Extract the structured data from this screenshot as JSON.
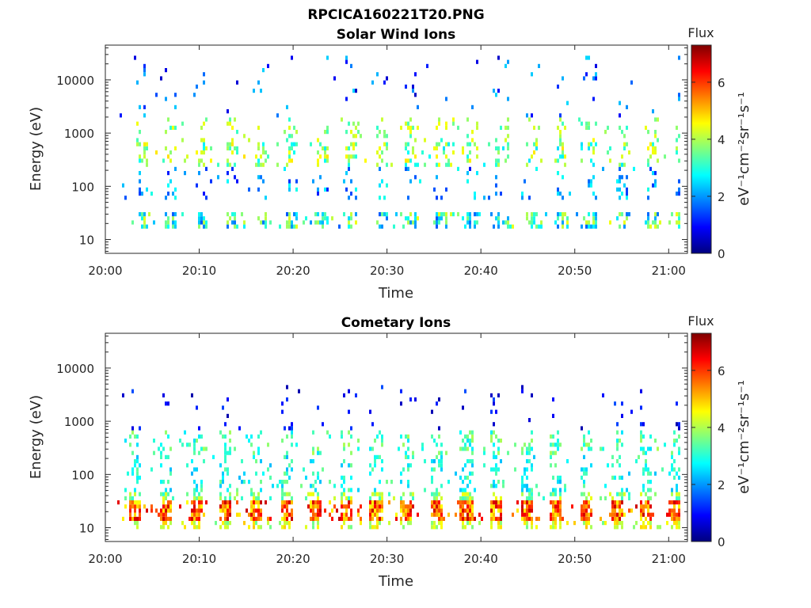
{
  "figure_title": "RPCICA160221T20.PNG",
  "colormap": [
    "#00007f",
    "#0000ff",
    "#007fff",
    "#00ffff",
    "#7fff7f",
    "#ffff00",
    "#ff7f00",
    "#ff0000",
    "#7f0000"
  ],
  "chart_data": [
    {
      "type": "heatmap",
      "title": "Solar Wind Ions",
      "xlabel": "Time",
      "ylabel": "Energy (eV)",
      "x_ticks": [
        "20:00",
        "20:10",
        "20:20",
        "20:30",
        "20:40",
        "20:50",
        "21:00"
      ],
      "xlim": [
        "20:00",
        "21:02"
      ],
      "y_scale": "log",
      "y_ticks": [
        "10",
        "100",
        "1000",
        "10000"
      ],
      "ylim": [
        5.5,
        45000
      ],
      "colorbar": {
        "title": "Flux",
        "label": "eV⁻¹cm⁻²sr⁻¹s⁻¹",
        "ticks": [
          "0",
          "2",
          "4",
          "6"
        ],
        "range": [
          0,
          7.3
        ]
      },
      "sweep_interval_min": 3.2,
      "sweep_start_min": 3.2,
      "bands": [
        {
          "energy_range": [
            15,
            35
          ],
          "flux_range": [
            1.5,
            4.5
          ],
          "density": 0.55
        },
        {
          "energy_range": [
            250,
            700
          ],
          "flux_range": [
            2.5,
            4.8
          ],
          "density": 0.35
        },
        {
          "energy_range": [
            700,
            1800
          ],
          "flux_range": [
            3.0,
            4.6
          ],
          "density": 0.18
        },
        {
          "energy_range": [
            60,
            250
          ],
          "flux_range": [
            1.0,
            3.0
          ],
          "density": 0.12
        },
        {
          "energy_range": [
            1800,
            30000
          ],
          "flux_range": [
            0.5,
            2.5
          ],
          "density": 0.05
        }
      ]
    },
    {
      "type": "heatmap",
      "title": "Cometary Ions",
      "xlabel": "Time",
      "ylabel": "Energy (eV)",
      "x_ticks": [
        "20:00",
        "20:10",
        "20:20",
        "20:30",
        "20:40",
        "20:50",
        "21:00"
      ],
      "xlim": [
        "20:00",
        "21:02"
      ],
      "y_scale": "log",
      "y_ticks": [
        "10",
        "100",
        "1000",
        "10000"
      ],
      "ylim": [
        5.5,
        45000
      ],
      "colorbar": {
        "title": "Flux",
        "label": "eV⁻¹cm⁻²sr⁻¹s⁻¹",
        "ticks": [
          "0",
          "2",
          "4",
          "6"
        ],
        "range": [
          0,
          7.3
        ]
      },
      "sweep_interval_min": 3.2,
      "sweep_start_min": 2.6,
      "bands": [
        {
          "energy_range": [
            14,
            32
          ],
          "flux_range": [
            4.5,
            6.8
          ],
          "density": 0.85
        },
        {
          "energy_range": [
            10,
            14
          ],
          "flux_range": [
            3.5,
            5.0
          ],
          "density": 0.6
        },
        {
          "energy_range": [
            32,
            45
          ],
          "flux_range": [
            3.0,
            4.5
          ],
          "density": 0.5
        },
        {
          "energy_range": [
            45,
            250
          ],
          "flux_range": [
            2.2,
            3.6
          ],
          "density": 0.25
        },
        {
          "energy_range": [
            250,
            700
          ],
          "flux_range": [
            2.5,
            4.0
          ],
          "density": 0.3
        },
        {
          "energy_range": [
            700,
            5000
          ],
          "flux_range": [
            0.3,
            1.5
          ],
          "density": 0.05
        }
      ]
    }
  ]
}
